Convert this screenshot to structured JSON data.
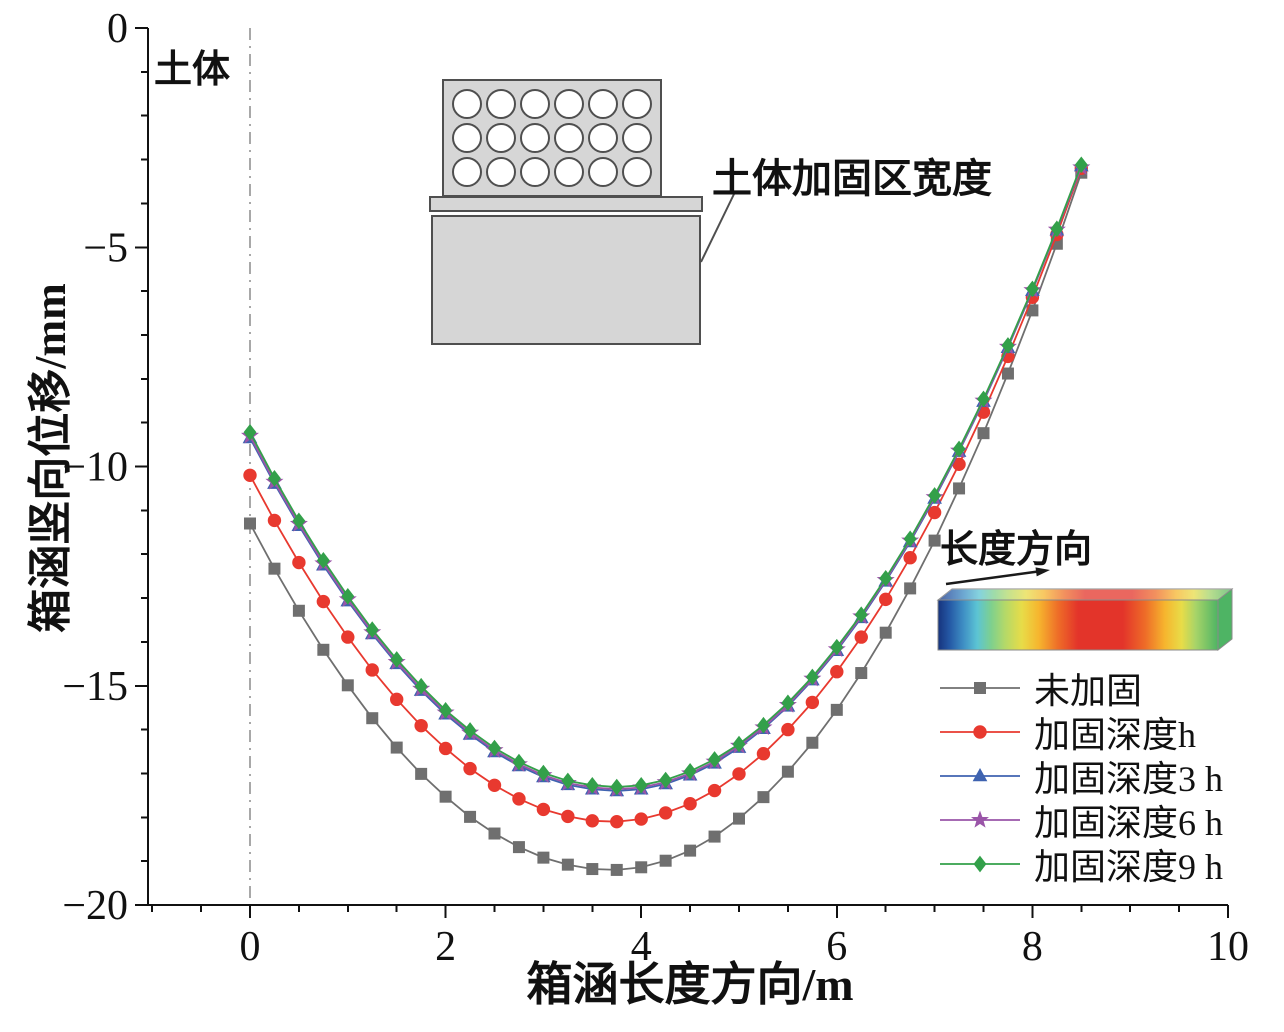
{
  "figure": {
    "soil_label": "土体",
    "inset_top_label": "土体加固区宽度",
    "inset_right_label": "长度方向"
  },
  "chart_data": {
    "type": "line",
    "title": "",
    "xlabel": "箱涵长度方向/m",
    "ylabel": "箱涵竖向位移/mm",
    "xlim": [
      -1.05,
      10
    ],
    "ylim": [
      -20,
      0
    ],
    "x_ticks": [
      0,
      2,
      4,
      6,
      8,
      10
    ],
    "y_ticks": [
      0,
      -5,
      -10,
      -15,
      -20
    ],
    "x_minor_step": 0.5,
    "y_minor_step": 1,
    "grid": false,
    "legend_position": "lower right",
    "reference_line_x": 0,
    "x": [
      0,
      0.25,
      0.5,
      0.75,
      1,
      1.25,
      1.5,
      1.75,
      2,
      2.25,
      2.5,
      2.75,
      3,
      3.25,
      3.5,
      3.75,
      4,
      4.25,
      4.5,
      4.75,
      5,
      5.25,
      5.5,
      5.75,
      6,
      6.25,
      6.5,
      6.75,
      7,
      7.25,
      7.5,
      7.75,
      8,
      8.25,
      8.5
    ],
    "series": [
      {
        "name": "未加固",
        "marker": "square",
        "color": "#6f6f6f",
        "values": [
          -11.3,
          -12.33,
          -13.29,
          -14.18,
          -14.99,
          -15.74,
          -16.41,
          -17.01,
          -17.53,
          -17.99,
          -18.37,
          -18.68,
          -18.92,
          -19.08,
          -19.18,
          -19.2,
          -19.14,
          -18.99,
          -18.76,
          -18.44,
          -18.03,
          -17.54,
          -16.96,
          -16.3,
          -15.55,
          -14.71,
          -13.79,
          -12.78,
          -11.69,
          -10.5,
          -9.24,
          -7.88,
          -6.44,
          -4.92,
          -3.3
        ]
      },
      {
        "name": "加固深度h",
        "marker": "circle",
        "color": "#e8392f",
        "values": [
          -10.2,
          -11.23,
          -12.19,
          -13.08,
          -13.89,
          -14.64,
          -15.31,
          -15.91,
          -16.43,
          -16.89,
          -17.27,
          -17.58,
          -17.82,
          -17.98,
          -18.08,
          -18.1,
          -18.04,
          -17.9,
          -17.69,
          -17.39,
          -17.01,
          -16.55,
          -16.0,
          -15.38,
          -14.68,
          -13.89,
          -13.03,
          -12.08,
          -11.05,
          -9.95,
          -8.76,
          -7.49,
          -6.14,
          -4.71,
          -3.2
        ]
      },
      {
        "name": "加固深度3 h",
        "marker": "triangle",
        "color": "#3f63b0",
        "values": [
          -9.35,
          -10.39,
          -11.35,
          -12.25,
          -13.07,
          -13.82,
          -14.5,
          -15.11,
          -15.65,
          -16.11,
          -16.51,
          -16.83,
          -17.08,
          -17.26,
          -17.36,
          -17.4,
          -17.36,
          -17.24,
          -17.04,
          -16.77,
          -16.41,
          -15.98,
          -15.47,
          -14.87,
          -14.2,
          -13.45,
          -12.62,
          -11.72,
          -10.73,
          -9.66,
          -8.52,
          -7.29,
          -5.99,
          -4.61,
          -3.15
        ]
      },
      {
        "name": "加固深度6 h",
        "marker": "star",
        "color": "#9a55a8",
        "values": [
          -9.3,
          -10.35,
          -11.31,
          -12.21,
          -13.03,
          -13.78,
          -14.46,
          -15.07,
          -15.61,
          -16.07,
          -16.47,
          -16.79,
          -17.04,
          -17.22,
          -17.32,
          -17.36,
          -17.32,
          -17.2,
          -17.0,
          -16.73,
          -16.37,
          -15.95,
          -15.44,
          -14.84,
          -14.17,
          -13.42,
          -12.59,
          -11.69,
          -10.7,
          -9.64,
          -8.5,
          -7.27,
          -5.98,
          -4.6,
          -3.18
        ]
      },
      {
        "name": "加固深度9 h",
        "marker": "diamond",
        "color": "#33a04a",
        "values": [
          -9.22,
          -10.27,
          -11.24,
          -12.14,
          -12.96,
          -13.72,
          -14.4,
          -15.01,
          -15.56,
          -16.02,
          -16.42,
          -16.74,
          -16.99,
          -17.17,
          -17.27,
          -17.31,
          -17.27,
          -17.15,
          -16.95,
          -16.68,
          -16.33,
          -15.9,
          -15.39,
          -14.8,
          -14.12,
          -13.38,
          -12.55,
          -11.65,
          -10.66,
          -9.6,
          -8.46,
          -7.24,
          -5.95,
          -4.58,
          -3.12
        ]
      }
    ]
  }
}
